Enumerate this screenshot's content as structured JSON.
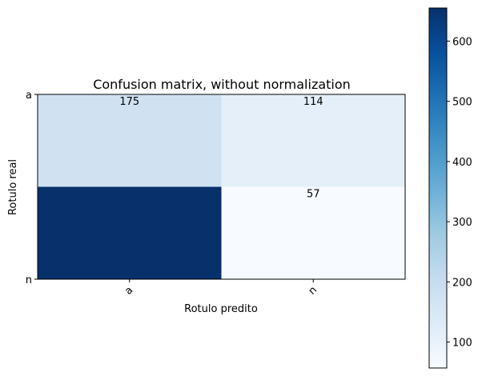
{
  "chart_data": {
    "type": "heatmap",
    "title": "Confusion matrix, without normalization",
    "xlabel": "Rotulo predito",
    "ylabel": "Rotulo real",
    "x_categories": [
      "a",
      "n"
    ],
    "y_categories": [
      "a",
      "n"
    ],
    "values": [
      [
        175,
        114
      ],
      [
        655,
        57
      ]
    ],
    "cell_labels": [
      [
        "175",
        "114"
      ],
      [
        "",
        "57"
      ]
    ],
    "colormap": "Blues",
    "colorbar": {
      "range": [
        57,
        655
      ],
      "ticks": [
        100,
        200,
        300,
        400,
        500,
        600
      ]
    }
  }
}
